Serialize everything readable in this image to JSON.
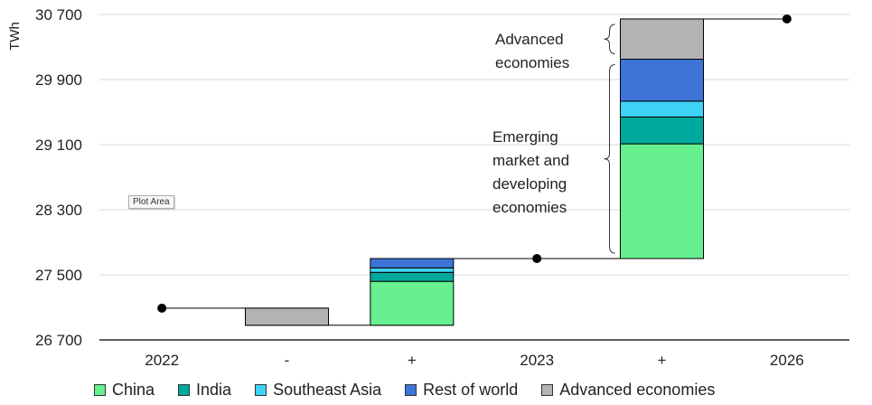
{
  "chart_data": {
    "type": "bar",
    "subtype": "waterfall",
    "ylabel": "TWh",
    "ylim": [
      26700,
      30700
    ],
    "yticks": [
      26700,
      27500,
      28300,
      29100,
      29900,
      30700
    ],
    "ytick_labels": [
      "26 700",
      "27 500",
      "28 300",
      "29 100",
      "29 900",
      "30 700"
    ],
    "categories": [
      "2022",
      "-",
      "+",
      "2023",
      "+",
      "2026"
    ],
    "colors": {
      "China": "#66f08f",
      "India": "#00a99d",
      "Southeast Asia": "#3ed3f5",
      "Rest of world": "#3d74d6",
      "Advanced economies": "#b3b3b3"
    },
    "totals": [
      {
        "category": "2022",
        "value": 27090
      },
      {
        "category": "2023",
        "value": 27700
      },
      {
        "category": "2026",
        "value": 30645
      }
    ],
    "steps": [
      {
        "category": "-",
        "direction": "decrease",
        "base": 26880,
        "segments": [
          {
            "series": "Advanced economies",
            "value": 210
          }
        ]
      },
      {
        "category": "+",
        "direction": "increase",
        "base": 26880,
        "segments": [
          {
            "series": "China",
            "value": 540
          },
          {
            "series": "India",
            "value": 110
          },
          {
            "series": "Southeast Asia",
            "value": 55
          },
          {
            "series": "Rest of world",
            "value": 115
          }
        ]
      },
      {
        "category": "+",
        "direction": "increase",
        "base": 27700,
        "segments": [
          {
            "series": "China",
            "value": 1410
          },
          {
            "series": "India",
            "value": 330
          },
          {
            "series": "Southeast Asia",
            "value": 195
          },
          {
            "series": "Rest of world",
            "value": 515
          },
          {
            "series": "Advanced economies",
            "value": 495
          }
        ]
      }
    ],
    "legend": {
      "placement": "bottom",
      "entries": [
        "China",
        "India",
        "Southeast Asia",
        "Rest of world",
        "Advanced economies"
      ]
    },
    "annotations": [
      {
        "lines": [
          "Advanced",
          "economies"
        ],
        "brace_from": 30150,
        "brace_to": 30645
      },
      {
        "lines": [
          "Emerging",
          "market and",
          "developing",
          "economies"
        ],
        "brace_from": 27700,
        "brace_to": 30150
      }
    ],
    "grid": true
  },
  "plot_area_tag": "Plot Area"
}
